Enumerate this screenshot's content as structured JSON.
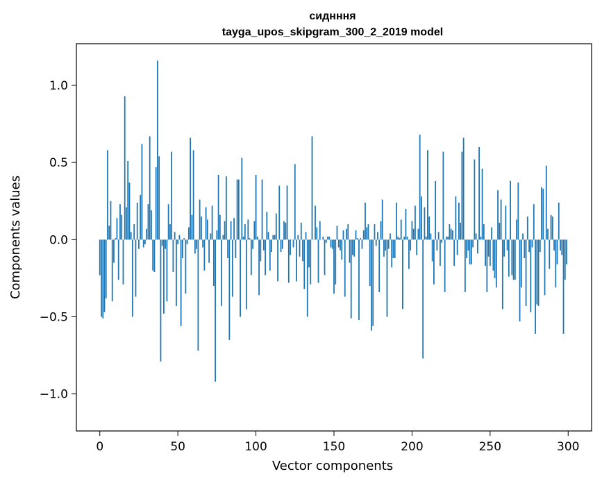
{
  "chart_data": {
    "type": "bar",
    "title": "сиднння",
    "subtitle": "tayga_upos_skipgram_300_2_2019 model",
    "xlabel": "Vector components",
    "ylabel": "Components values",
    "xlim": [
      -15,
      315
    ],
    "ylim": [
      -1.24,
      1.27
    ],
    "xticks": [
      0,
      50,
      100,
      150,
      200,
      250,
      300
    ],
    "xtick_labels": [
      "0",
      "50",
      "100",
      "150",
      "200",
      "250",
      "300"
    ],
    "yticks": [
      -1.0,
      -0.5,
      0.0,
      0.5,
      1.0
    ],
    "ytick_labels": [
      "−1.0",
      "−0.5",
      "0.0",
      "0.5",
      "1.0"
    ],
    "bar_color": "#1f77b4",
    "grid": false,
    "legend": "none",
    "values": [
      -0.23,
      -0.5,
      -0.51,
      -0.47,
      -0.38,
      0.58,
      0.09,
      0.25,
      -0.4,
      -0.15,
      0.01,
      0.14,
      -0.26,
      0.23,
      0.16,
      -0.29,
      0.93,
      0.21,
      0.51,
      0.37,
      0.05,
      -0.5,
      0.1,
      -0.37,
      0.24,
      -0.06,
      0.29,
      0.62,
      -0.05,
      -0.03,
      0.07,
      0.23,
      0.67,
      0.19,
      -0.2,
      -0.21,
      0.47,
      1.16,
      0.54,
      -0.79,
      -0.04,
      -0.48,
      -0.06,
      -0.4,
      0.23,
      0.1,
      0.57,
      -0.21,
      0.05,
      -0.43,
      -0.03,
      0.03,
      -0.56,
      -0.12,
      0.01,
      -0.35,
      -0.03,
      0.08,
      0.66,
      0.16,
      0.58,
      -0.09,
      -0.06,
      -0.72,
      0.26,
      0.15,
      -0.05,
      -0.2,
      0.21,
      0.13,
      -0.15,
      0.04,
      0.22,
      -0.3,
      -0.92,
      0.06,
      0.42,
      0.16,
      -0.43,
      0.03,
      0.12,
      0.41,
      -0.12,
      -0.65,
      0.12,
      -0.37,
      0.14,
      -0.12,
      0.39,
      0.39,
      -0.5,
      0.53,
      0.02,
      0.1,
      -0.45,
      0.13,
      0.01,
      -0.23,
      -0.06,
      0.12,
      0.42,
      0.02,
      -0.36,
      -0.14,
      0.39,
      -0.07,
      -0.23,
      0.18,
      0.05,
      -0.2,
      -0.08,
      0.03,
      0.03,
      0.17,
      -0.27,
      0.35,
      -0.08,
      -0.06,
      0.12,
      0.11,
      0.35,
      -0.28,
      -0.1,
      0.0,
      -0.05,
      0.49,
      -0.27,
      0.03,
      -0.11,
      0.11,
      -0.14,
      -0.32,
      0.05,
      -0.5,
      -0.18,
      -0.29,
      0.67,
      0.0,
      0.22,
      0.08,
      -0.28,
      0.12,
      0.0,
      0.02,
      -0.23,
      -0.02,
      0.02,
      0.02,
      -0.05,
      -0.06,
      -0.35,
      -0.29,
      0.09,
      -0.05,
      -0.07,
      -0.13,
      0.06,
      -0.37,
      0.07,
      0.1,
      -0.15,
      -0.51,
      -0.1,
      -0.11,
      0.06,
      0.01,
      -0.52,
      0.01,
      -0.06,
      0.06,
      0.24,
      0.08,
      0.1,
      -0.3,
      -0.59,
      -0.56,
      0.1,
      -0.04,
      0.05,
      -0.34,
      0.12,
      0.26,
      -0.11,
      -0.07,
      -0.5,
      -0.06,
      0.04,
      -0.18,
      -0.12,
      -0.12,
      0.24,
      0.02,
      0.01,
      0.13,
      -0.45,
      0.02,
      0.2,
      0.02,
      -0.19,
      -0.07,
      0.12,
      0.07,
      0.22,
      -0.1,
      0.07,
      0.68,
      0.28,
      -0.77,
      0.21,
      0.02,
      0.58,
      0.15,
      0.04,
      -0.14,
      -0.29,
      0.38,
      -0.07,
      0.05,
      -0.17,
      -0.02,
      0.57,
      -0.34,
      0.02,
      0.02,
      0.1,
      0.07,
      0.06,
      -0.17,
      0.28,
      -0.1,
      0.24,
      0.11,
      0.57,
      0.66,
      -0.34,
      -0.12,
      -0.07,
      -0.16,
      -0.16,
      -0.05,
      0.52,
      0.04,
      -0.09,
      0.6,
      0.02,
      0.46,
      0.1,
      -0.17,
      -0.34,
      -0.11,
      -0.17,
      0.08,
      -0.2,
      -0.25,
      -0.31,
      0.32,
      0.11,
      0.26,
      -0.45,
      -0.11,
      0.22,
      -0.07,
      -0.24,
      0.38,
      -0.23,
      -0.26,
      -0.26,
      0.13,
      0.37,
      -0.53,
      -0.31,
      0.04,
      -0.12,
      -0.43,
      0.15,
      -0.08,
      -0.47,
      -0.05,
      0.23,
      -0.61,
      -0.42,
      -0.43,
      -0.08,
      0.34,
      0.33,
      -0.36,
      0.48,
      0.07,
      -0.19,
      0.16,
      0.15,
      -0.07,
      -0.31,
      -0.16,
      0.24,
      -0.07,
      -0.1,
      -0.61,
      -0.26,
      -0.16
    ]
  }
}
